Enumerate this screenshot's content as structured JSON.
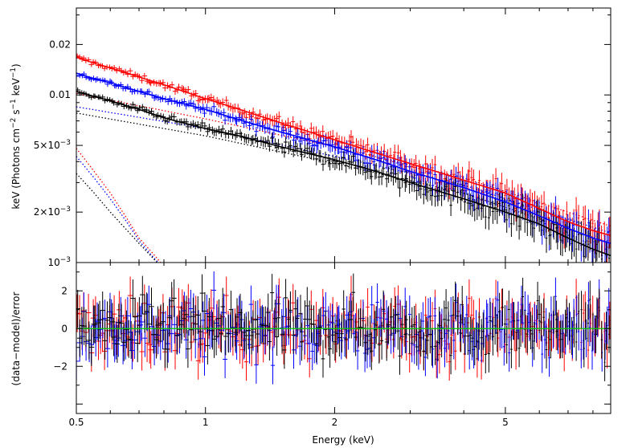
{
  "chart_data": [
    {
      "type": "line",
      "panel": "top",
      "xlabel": "",
      "ylabel_parts": [
        "keV (Photons cm",
        "−2",
        " s",
        "−1",
        " keV",
        "−1",
        ")"
      ],
      "xscale": "log",
      "yscale": "log",
      "xlim": [
        0.5,
        8.8
      ],
      "ylim": [
        0.001,
        0.033
      ],
      "grid": false,
      "y_ticks": [
        {
          "value": 0.02,
          "label": "0.02"
        },
        {
          "value": 0.01,
          "label": "0.01"
        },
        {
          "value": 0.005,
          "label": "5×10",
          "exp": "−3"
        },
        {
          "value": 0.002,
          "label": "2×10",
          "exp": "−3"
        },
        {
          "value": 0.001,
          "label": "10",
          "exp": "−3"
        }
      ],
      "series": [
        {
          "name": "red data",
          "color": "#ff0000",
          "kind": "data",
          "x": [
            0.5,
            0.55,
            0.6,
            0.7,
            0.8,
            1.0,
            1.2,
            1.5,
            2.0,
            2.5,
            3.0,
            4.0,
            5.0,
            6.0,
            7.0,
            8.0,
            8.8
          ],
          "y": [
            0.0168,
            0.0155,
            0.0145,
            0.0128,
            0.0115,
            0.0095,
            0.0082,
            0.0068,
            0.0054,
            0.0045,
            0.0039,
            0.0031,
            0.0026,
            0.0021,
            0.00175,
            0.00155,
            0.00145
          ]
        },
        {
          "name": "blue data",
          "color": "#0000ff",
          "kind": "data",
          "x": [
            0.5,
            0.55,
            0.6,
            0.7,
            0.8,
            1.0,
            1.2,
            1.5,
            2.0,
            2.5,
            3.0,
            4.0,
            5.0,
            6.0,
            7.0,
            8.0,
            8.8
          ],
          "y": [
            0.0135,
            0.0125,
            0.0118,
            0.0105,
            0.0095,
            0.0082,
            0.0071,
            0.006,
            0.0049,
            0.0041,
            0.0035,
            0.0028,
            0.0023,
            0.0019,
            0.0016,
            0.0014,
            0.0013
          ]
        },
        {
          "name": "black data",
          "color": "#000000",
          "kind": "data",
          "x": [
            0.5,
            0.55,
            0.6,
            0.7,
            0.8,
            1.0,
            1.2,
            1.5,
            2.0,
            2.5,
            3.0,
            4.0,
            5.0,
            6.0,
            7.0,
            8.0,
            8.8
          ],
          "y": [
            0.0105,
            0.0098,
            0.0092,
            0.0082,
            0.0073,
            0.0063,
            0.0057,
            0.0049,
            0.0041,
            0.0035,
            0.003,
            0.0024,
            0.002,
            0.0017,
            0.0014,
            0.0012,
            0.0011
          ]
        },
        {
          "name": "red power-law component",
          "color": "#ff0000",
          "kind": "dotted",
          "x": [
            0.5,
            1.0,
            2.0,
            4.0,
            8.8
          ],
          "y": [
            0.0102,
            0.0072,
            0.0049,
            0.0032,
            0.00165
          ]
        },
        {
          "name": "blue power-law component",
          "color": "#0000ff",
          "kind": "dotted",
          "x": [
            0.5,
            1.0,
            2.0,
            4.0,
            8.8
          ],
          "y": [
            0.0085,
            0.0063,
            0.0043,
            0.0029,
            0.0015
          ]
        },
        {
          "name": "black power-law component",
          "color": "#000000",
          "kind": "dotted",
          "x": [
            0.5,
            1.0,
            2.0,
            4.0,
            8.8
          ],
          "y": [
            0.0078,
            0.0057,
            0.0039,
            0.0026,
            0.0013
          ]
        },
        {
          "name": "red soft component",
          "color": "#ff0000",
          "kind": "dotted",
          "x": [
            0.5,
            0.55,
            0.6,
            0.65,
            0.7,
            0.75,
            0.8
          ],
          "y": [
            0.0048,
            0.0035,
            0.0026,
            0.0019,
            0.0014,
            0.00115,
            0.00095
          ]
        },
        {
          "name": "blue soft component",
          "color": "#0000ff",
          "kind": "dotted",
          "x": [
            0.5,
            0.55,
            0.6,
            0.65,
            0.7,
            0.75,
            0.8
          ],
          "y": [
            0.0043,
            0.0032,
            0.0024,
            0.0018,
            0.00135,
            0.0011,
            0.00092
          ]
        },
        {
          "name": "black soft component",
          "color": "#000000",
          "kind": "dotted",
          "x": [
            0.5,
            0.55,
            0.6,
            0.65,
            0.7,
            0.75,
            0.8
          ],
          "y": [
            0.0034,
            0.0026,
            0.002,
            0.0016,
            0.0013,
            0.00108,
            0.0009
          ]
        }
      ]
    },
    {
      "type": "scatter",
      "panel": "bottom",
      "xlabel": "Energy (keV)",
      "ylabel": "(data−model)/error",
      "xscale": "log",
      "yscale": "linear",
      "xlim": [
        0.5,
        8.8
      ],
      "ylim": [
        -4.5,
        3.5
      ],
      "grid": false,
      "zero_line": {
        "value": 0,
        "color": "#00cc00"
      },
      "y_ticks": [
        {
          "value": 2,
          "label": "2"
        },
        {
          "value": 0,
          "label": "0"
        },
        {
          "value": -2,
          "label": "−2"
        }
      ],
      "x_ticks": [
        {
          "value": 0.5,
          "label": "0.5"
        },
        {
          "value": 1,
          "label": "1"
        },
        {
          "value": 2,
          "label": "2"
        },
        {
          "value": 5,
          "label": "5"
        }
      ],
      "series": [
        {
          "name": "red residuals",
          "color": "#ff0000",
          "spread": 1.0
        },
        {
          "name": "blue residuals",
          "color": "#0000ff",
          "spread": 1.0
        },
        {
          "name": "black residuals",
          "color": "#000000",
          "spread": 1.0
        }
      ]
    }
  ]
}
